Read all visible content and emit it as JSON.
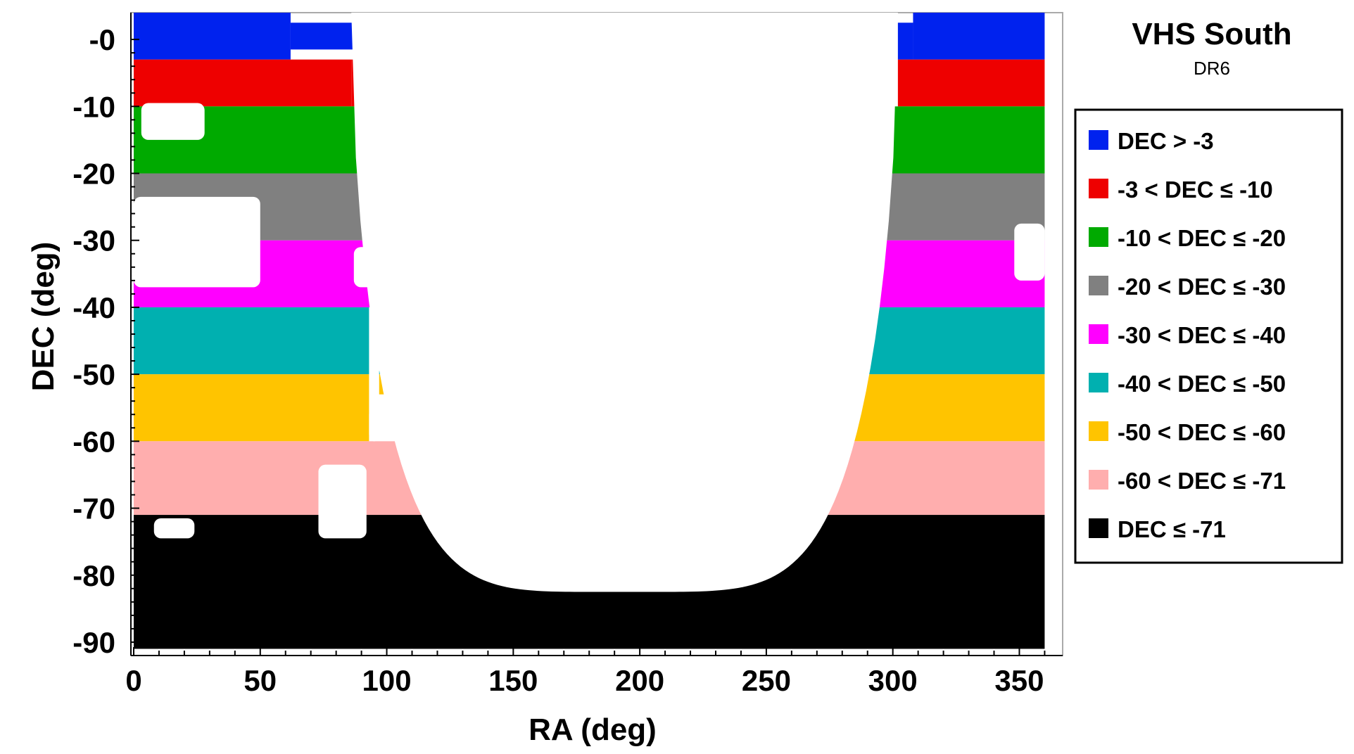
{
  "chart_data": {
    "type": "scatter",
    "title": "VHS South",
    "subtitle": "DR6",
    "xlabel": "RA (deg)",
    "ylabel": "DEC (deg)",
    "xlim": [
      0,
      366
    ],
    "ylim": [
      -92,
      4
    ],
    "xticks": [
      0,
      50,
      100,
      150,
      200,
      250,
      300,
      350
    ],
    "yticks": [
      0,
      -10,
      -20,
      -30,
      -40,
      -50,
      -60,
      -70,
      -80,
      -90
    ],
    "ytick_labels": [
      "-0",
      "-10",
      "-20",
      "-30",
      "-40",
      "-50",
      "-60",
      "-70",
      "-80",
      "-90"
    ],
    "legend_position": "right",
    "grid": false,
    "series": [
      {
        "name": "DEC > -3",
        "color": "#0022ee",
        "dec_max": 4.0,
        "dec_min": -3.0,
        "coverage": [
          [
            0,
            62,
            4.0,
            -3.0
          ],
          [
            62,
            87,
            2.5,
            -1.5
          ],
          [
            308,
            360,
            4.0,
            -3.0
          ],
          [
            302,
            308,
            2.5,
            -3.0
          ]
        ]
      },
      {
        "name": "-3 < DEC ≤ -10",
        "color": "#ee0000",
        "dec_max": -3.0,
        "dec_min": -10.0,
        "coverage": [
          [
            0,
            86,
            -3.0,
            -10.0
          ],
          [
            86,
            89,
            -3.0,
            -10.0
          ],
          [
            302,
            360,
            -3.0,
            -10.0
          ]
        ]
      },
      {
        "name": "-10 < DEC ≤ -20",
        "color": "#00aa00",
        "dec_max": -10.0,
        "dec_min": -20.0,
        "coverage": [
          [
            0,
            91,
            -10.0,
            -20.0
          ],
          [
            295,
            360,
            -10.0,
            -20.0
          ]
        ]
      },
      {
        "name": "-20 < DEC ≤ -30",
        "color": "#808080",
        "dec_max": -20.0,
        "dec_min": -30.0,
        "coverage": [
          [
            0,
            93,
            -20.0,
            -30.0
          ],
          [
            289,
            360,
            -20.0,
            -30.0
          ]
        ]
      },
      {
        "name": "-30 < DEC ≤ -40",
        "color": "#ff00ff",
        "dec_max": -30.0,
        "dec_min": -40.0,
        "coverage": [
          [
            0,
            97,
            -30.0,
            -40.0
          ],
          [
            284,
            360,
            -30.0,
            -40.0
          ]
        ]
      },
      {
        "name": "-40 < DEC ≤ -50",
        "color": "#00b0b0",
        "dec_max": -40.0,
        "dec_min": -50.0,
        "coverage": [
          [
            0,
            93,
            -40.0,
            -50.0
          ],
          [
            280,
            360,
            -40.0,
            -50.0
          ],
          [
            97,
            106,
            -49.5,
            -50.0
          ]
        ]
      },
      {
        "name": "-50 < DEC ≤ -60",
        "color": "#ffc400",
        "dec_max": -50.0,
        "dec_min": -60.0,
        "coverage": [
          [
            0,
            93,
            -50.0,
            -60.0
          ],
          [
            97,
            106,
            -50.0,
            -53.0
          ],
          [
            273,
            360,
            -50.0,
            -60.0
          ]
        ]
      },
      {
        "name": "-60 < DEC ≤ -71",
        "color": "#ffaeae",
        "dec_max": -60.0,
        "dec_min": -71.0,
        "coverage": [
          [
            0,
            122,
            -60.0,
            -71.0
          ],
          [
            262,
            360,
            -60.0,
            -71.0
          ]
        ]
      },
      {
        "name": "DEC ≤ -71",
        "color": "#000000",
        "dec_max": -71.0,
        "dec_min": -91.0,
        "coverage": [
          [
            0,
            360,
            -71.0,
            -91.0
          ]
        ]
      }
    ],
    "gaps": [
      {
        "ra": [
          3,
          28
        ],
        "dec": [
          -9.5,
          -15.0
        ]
      },
      {
        "ra": [
          0,
          50
        ],
        "dec": [
          -23.5,
          -37.0
        ]
      },
      {
        "ra": [
          73,
          92
        ],
        "dec": [
          -63.5,
          -74.5
        ]
      },
      {
        "ra": [
          8,
          24
        ],
        "dec": [
          -71.5,
          -74.5
        ]
      },
      {
        "ra": [
          87,
          97
        ],
        "dec": [
          -31.0,
          -37.0
        ]
      },
      {
        "ra": [
          93,
          97
        ],
        "dec": [
          -55.0,
          -60.0
        ]
      },
      {
        "ra": [
          62,
          72
        ],
        "dec": [
          -3.0,
          -1.5
        ]
      },
      {
        "ra": [
          348,
          360
        ],
        "dec": [
          -27.5,
          -36.0
        ]
      }
    ],
    "empty_region": {
      "description_ra": [
        92,
        300
      ],
      "dec_top": 4.0,
      "dec_floor": -82.5
    }
  }
}
